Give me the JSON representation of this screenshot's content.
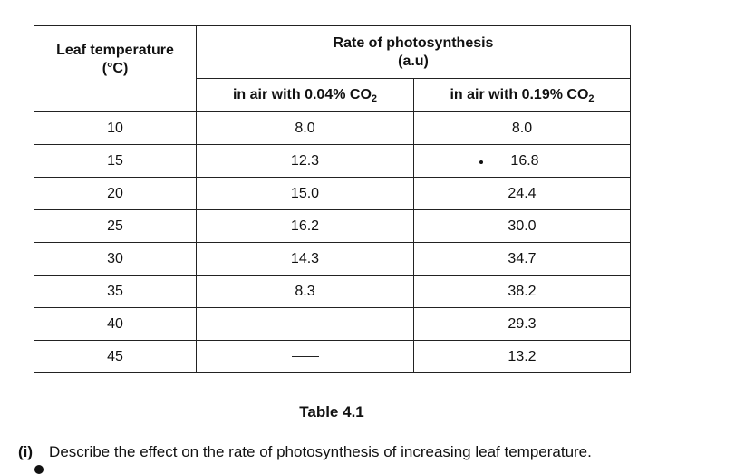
{
  "table": {
    "header": {
      "temp_line1": "Leaf temperature",
      "temp_line2": "(°C)",
      "rate_line1": "Rate of photosynthesis",
      "rate_line2": "(a.u)",
      "col_a_prefix": "in air with 0.04% CO",
      "col_a_sub": "2",
      "col_b_prefix": "in air with 0.19% CO",
      "col_b_sub": "2"
    },
    "rows": [
      {
        "temp": "10",
        "a": "8.0",
        "b": "8.0"
      },
      {
        "temp": "15",
        "a": "12.3",
        "b": "16.8"
      },
      {
        "temp": "20",
        "a": "15.0",
        "b": "24.4"
      },
      {
        "temp": "25",
        "a": "16.2",
        "b": "30.0"
      },
      {
        "temp": "30",
        "a": "14.3",
        "b": "34.7"
      },
      {
        "temp": "35",
        "a": "8.3",
        "b": "38.2"
      },
      {
        "temp": "40",
        "a": "",
        "b": "29.3"
      },
      {
        "temp": "45",
        "a": "",
        "b": "13.2"
      }
    ]
  },
  "caption": "Table 4.1",
  "question": {
    "number": "(i)",
    "text": "Describe the effect on the rate of photosynthesis of increasing leaf temperature."
  }
}
